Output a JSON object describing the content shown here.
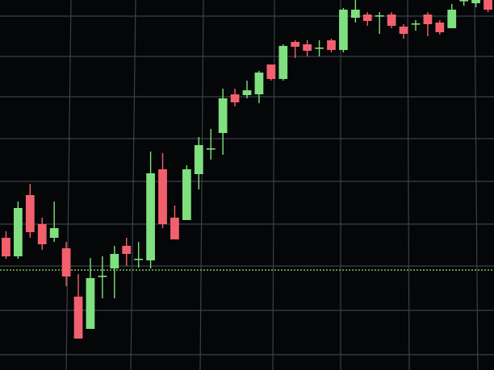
{
  "chart_data": {
    "type": "candlestick",
    "categories": [
      null,
      null,
      null,
      null,
      null,
      null,
      null,
      null,
      null,
      null,
      null,
      null,
      null,
      null,
      null,
      null,
      null,
      null,
      null,
      null,
      null,
      null,
      null,
      null,
      null,
      null,
      null,
      null,
      null,
      null,
      null,
      null,
      null,
      null,
      null,
      null,
      null,
      null,
      null,
      null,
      null
    ],
    "open": [
      164,
      141,
      217,
      181,
      164,
      151,
      91,
      51,
      116,
      126,
      154,
      137,
      136,
      249,
      189,
      186,
      243,
      274,
      294,
      342,
      341,
      342,
      379,
      361,
      407,
      404,
      399,
      409,
      397,
      437,
      441,
      439,
      441,
      426,
      429,
      441,
      431,
      424,
      458,
      455,
      459
    ],
    "close": [
      141,
      201,
      171,
      156,
      176,
      116,
      39,
      114,
      117,
      144,
      144,
      138,
      244,
      181,
      162,
      249,
      279,
      275,
      337,
      332,
      347,
      369,
      361,
      402,
      401,
      396,
      400,
      397,
      447,
      447,
      433,
      440,
      427,
      417,
      430,
      429,
      419,
      447,
      459,
      459,
      447
    ],
    "high": [
      172,
      209,
      231,
      189,
      209,
      159,
      119,
      139,
      141,
      154,
      164,
      159,
      271,
      269,
      204,
      254,
      289,
      299,
      349,
      349,
      359,
      371,
      379,
      404,
      409,
      409,
      409,
      411,
      449,
      459,
      444,
      444,
      444,
      429,
      434,
      444,
      434,
      454,
      459,
      459,
      459
    ],
    "low": [
      138,
      138,
      164,
      149,
      159,
      104,
      39,
      51,
      89,
      89,
      129,
      127,
      126,
      176,
      162,
      186,
      224,
      261,
      267,
      327,
      337,
      331,
      359,
      359,
      387,
      389,
      389,
      394,
      394,
      431,
      427,
      417,
      424,
      411,
      421,
      414,
      416,
      424,
      452,
      450,
      444
    ],
    "up_color": "#7ee07e",
    "down_color": "#f2606e",
    "ylim": [
      0,
      459
    ],
    "yticks": [
      19,
      74,
      129,
      181,
      234,
      287,
      339,
      389,
      439
    ],
    "grid": true,
    "reference_line": {
      "value": 124,
      "color": "#9be86a"
    }
  }
}
